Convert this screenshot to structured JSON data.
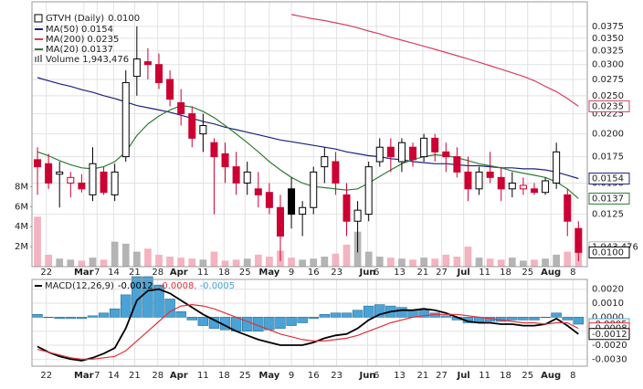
{
  "chart_data": [
    {
      "type": "candlestick",
      "title": "GTVH (Daily)",
      "value_label": "0.0100",
      "log_scale": true,
      "grid": true,
      "up_color": "#000000",
      "down_color": "#cc0033",
      "xlim": [
        -0.5,
        49.8
      ],
      "xticks": [
        {
          "value": 0.8,
          "label": "22"
        },
        {
          "value": 4.2,
          "label": "Mar"
        },
        {
          "value": 5.4,
          "label": "7"
        },
        {
          "value": 6.9,
          "label": "14"
        },
        {
          "value": 8.8,
          "label": "21"
        },
        {
          "value": 10.9,
          "label": "28"
        },
        {
          "value": 12.8,
          "label": "Apr"
        },
        {
          "value": 15.0,
          "label": "11"
        },
        {
          "value": 16.9,
          "label": "18"
        },
        {
          "value": 18.8,
          "label": "25"
        },
        {
          "value": 21.0,
          "label": "May"
        },
        {
          "value": 23.0,
          "label": "9"
        },
        {
          "value": 25.0,
          "label": "16"
        },
        {
          "value": 27.1,
          "label": "23"
        },
        {
          "value": 29.9,
          "label": "Jun"
        },
        {
          "value": 30.7,
          "label": "6"
        },
        {
          "value": 32.8,
          "label": "13"
        },
        {
          "value": 34.9,
          "label": "21"
        },
        {
          "value": 36.6,
          "label": "27"
        },
        {
          "value": 38.6,
          "label": "Jul"
        },
        {
          "value": 40.5,
          "label": "11"
        },
        {
          "value": 42.4,
          "label": "18"
        },
        {
          "value": 44.4,
          "label": "25"
        },
        {
          "value": 46.5,
          "label": "Aug"
        },
        {
          "value": 48.5,
          "label": "8"
        }
      ],
      "ylim": [
        0.0092,
        0.0433
      ],
      "yticks": [
        {
          "value": 0.0375,
          "label": "0.0375"
        },
        {
          "value": 0.035,
          "label": "0.0350"
        },
        {
          "value": 0.0325,
          "label": "0.0325"
        },
        {
          "value": 0.03,
          "label": "0.0300"
        },
        {
          "value": 0.0275,
          "label": "0.0275"
        },
        {
          "value": 0.025,
          "label": "0.0250"
        },
        {
          "value": 0.0225,
          "label": "0.0225"
        },
        {
          "value": 0.02,
          "label": "0.0200"
        },
        {
          "value": 0.0175,
          "label": "0.0175"
        },
        {
          "value": 0.015,
          "label": "0.0150"
        },
        {
          "value": 0.0125,
          "label": "0.0125"
        }
      ],
      "ohlc": [
        [
          0.0172,
          0.0185,
          0.014,
          0.0165
        ],
        [
          0.0168,
          0.0178,
          0.0145,
          0.015
        ],
        [
          0.0158,
          0.017,
          0.013,
          0.016
        ],
        [
          0.015,
          0.016,
          0.0138,
          0.0155
        ],
        [
          0.015,
          0.0158,
          0.0142,
          0.0145
        ],
        [
          0.014,
          0.0185,
          0.0135,
          0.0168
        ],
        [
          0.016,
          0.0165,
          0.014,
          0.0142
        ],
        [
          0.014,
          0.0168,
          0.0135,
          0.016
        ],
        [
          0.0175,
          0.029,
          0.017,
          0.027
        ],
        [
          0.028,
          0.0375,
          0.025,
          0.031
        ],
        [
          0.0305,
          0.033,
          0.0275,
          0.03
        ],
        [
          0.03,
          0.032,
          0.026,
          0.027
        ],
        [
          0.0275,
          0.029,
          0.0235,
          0.0245
        ],
        [
          0.024,
          0.026,
          0.021,
          0.0225
        ],
        [
          0.0225,
          0.0235,
          0.0185,
          0.0195
        ],
        [
          0.02,
          0.0225,
          0.018,
          0.021
        ],
        [
          0.019,
          0.0195,
          0.0125,
          0.0175
        ],
        [
          0.0178,
          0.019,
          0.015,
          0.0165
        ],
        [
          0.0165,
          0.018,
          0.014,
          0.015
        ],
        [
          0.015,
          0.017,
          0.014,
          0.016
        ],
        [
          0.0145,
          0.016,
          0.013,
          0.014
        ],
        [
          0.0142,
          0.015,
          0.0125,
          0.013
        ],
        [
          0.013,
          0.014,
          0.0095,
          0.011
        ],
        [
          0.0145,
          0.0155,
          0.0115,
          0.0125
        ],
        [
          0.0125,
          0.0135,
          0.011,
          0.013
        ],
        [
          0.013,
          0.0165,
          0.0125,
          0.016
        ],
        [
          0.0165,
          0.0185,
          0.015,
          0.0175
        ],
        [
          0.017,
          0.018,
          0.014,
          0.015
        ],
        [
          0.014,
          0.015,
          0.011,
          0.012
        ],
        [
          0.012,
          0.0135,
          0.01,
          0.0128
        ],
        [
          0.0125,
          0.017,
          0.012,
          0.0165
        ],
        [
          0.017,
          0.0195,
          0.0165,
          0.0185
        ],
        [
          0.0185,
          0.0195,
          0.016,
          0.0175
        ],
        [
          0.017,
          0.0195,
          0.016,
          0.019
        ],
        [
          0.0185,
          0.019,
          0.0165,
          0.0172
        ],
        [
          0.0175,
          0.02,
          0.017,
          0.0195
        ],
        [
          0.0195,
          0.02,
          0.017,
          0.018
        ],
        [
          0.018,
          0.019,
          0.016,
          0.0175
        ],
        [
          0.0175,
          0.0185,
          0.0155,
          0.016
        ],
        [
          0.016,
          0.0175,
          0.0135,
          0.0145
        ],
        [
          0.0145,
          0.0165,
          0.014,
          0.016
        ],
        [
          0.016,
          0.018,
          0.015,
          0.0155
        ],
        [
          0.0155,
          0.0165,
          0.0135,
          0.0145
        ],
        [
          0.0145,
          0.016,
          0.0138,
          0.015
        ],
        [
          0.0145,
          0.0155,
          0.014,
          0.0148
        ],
        [
          0.0145,
          0.015,
          0.014,
          0.0142
        ],
        [
          0.0142,
          0.0155,
          0.014,
          0.0152
        ],
        [
          0.015,
          0.019,
          0.0145,
          0.018
        ],
        [
          0.014,
          0.0145,
          0.011,
          0.012
        ],
        [
          0.0115,
          0.012,
          0.0095,
          0.01
        ]
      ],
      "series": [
        {
          "name": "MA(50)",
          "value_label": "0.0154",
          "color": "#1a237e",
          "values": [
            0.0278,
            0.0273,
            0.0268,
            0.0264,
            0.0259,
            0.0255,
            0.025,
            0.0246,
            0.0241,
            0.0236,
            0.0233,
            0.023,
            0.0227,
            0.0223,
            0.0219,
            0.0215,
            0.0212,
            0.0208,
            0.0205,
            0.0202,
            0.0199,
            0.0196,
            0.0193,
            0.0191,
            0.0189,
            0.0187,
            0.0185,
            0.0183,
            0.018,
            0.0178,
            0.0176,
            0.0175,
            0.0173,
            0.0172,
            0.017,
            0.0169,
            0.0168,
            0.0168,
            0.0167,
            0.0166,
            0.0166,
            0.0165,
            0.0164,
            0.0164,
            0.0163,
            0.0163,
            0.0162,
            0.016,
            0.0157,
            0.0154
          ]
        },
        {
          "name": "MA(200)",
          "value_label": "0.0235",
          "color": "#d6405e",
          "values": [
            null,
            null,
            null,
            null,
            null,
            null,
            null,
            null,
            null,
            null,
            null,
            null,
            null,
            null,
            null,
            null,
            null,
            null,
            null,
            null,
            null,
            null,
            null,
            0.0402,
            0.0397,
            0.0392,
            0.0388,
            0.0383,
            0.0378,
            0.0372,
            0.0365,
            0.0359,
            0.0352,
            0.0346,
            0.034,
            0.0334,
            0.0328,
            0.0322,
            0.0316,
            0.031,
            0.0304,
            0.0298,
            0.0292,
            0.0286,
            0.028,
            0.0273,
            0.0264,
            0.0256,
            0.0246,
            0.0235
          ]
        },
        {
          "name": "MA(20)",
          "value_label": "0.0137",
          "color": "#2e7d32",
          "values": [
            0.018,
            0.0176,
            0.0171,
            0.0167,
            0.0164,
            0.0163,
            0.0165,
            0.017,
            0.018,
            0.0198,
            0.0212,
            0.0222,
            0.023,
            0.0236,
            0.0234,
            0.0228,
            0.022,
            0.021,
            0.02,
            0.019,
            0.018,
            0.017,
            0.0162,
            0.0155,
            0.015,
            0.0147,
            0.0146,
            0.0145,
            0.0144,
            0.0145,
            0.015,
            0.0156,
            0.0162,
            0.0168,
            0.0172,
            0.0175,
            0.0177,
            0.0176,
            0.0174,
            0.0171,
            0.0168,
            0.0166,
            0.0164,
            0.0161,
            0.0159,
            0.0157,
            0.0155,
            0.0151,
            0.0145,
            0.0137
          ]
        }
      ],
      "volume": {
        "name": "Volume",
        "value_label": "1,943,476",
        "up_color": "#b4b4b4",
        "down_color": "#f4b3c0",
        "ylim": [
          0,
          26500000
        ],
        "yticks": [
          {
            "value": 2000000,
            "label": "2M"
          },
          {
            "value": 4000000,
            "label": "4M"
          },
          {
            "value": 6000000,
            "label": "6M"
          },
          {
            "value": 8000000,
            "label": "8M"
          }
        ],
        "values": [
          5000000,
          1200000,
          800000,
          700000,
          600000,
          900000,
          700000,
          2500000,
          2300000,
          1500000,
          1800000,
          1200000,
          1000000,
          900000,
          800000,
          700000,
          1500000,
          600000,
          700000,
          800000,
          1200000,
          1000000,
          1600000,
          900000,
          700000,
          800000,
          1000000,
          1300000,
          2200000,
          3500000,
          1500000,
          1000000,
          900000,
          800000,
          700000,
          900000,
          800000,
          1200000,
          1000000,
          2000000,
          900000,
          800000,
          700000,
          900000,
          600000,
          700000,
          800000,
          1200000,
          1500000,
          1943476
        ]
      }
    },
    {
      "type": "line",
      "title": "MACD(12,26,9)",
      "separator": ",",
      "grid": true,
      "xlim": [
        -0.5,
        49.8
      ],
      "xticks": [
        {
          "value": 0.8,
          "label": "22"
        },
        {
          "value": 4.2,
          "label": "Mar"
        },
        {
          "value": 5.4,
          "label": "7"
        },
        {
          "value": 6.9,
          "label": "14"
        },
        {
          "value": 8.8,
          "label": "21"
        },
        {
          "value": 10.9,
          "label": "28"
        },
        {
          "value": 12.8,
          "label": "Apr"
        },
        {
          "value": 15.0,
          "label": "11"
        },
        {
          "value": 16.9,
          "label": "18"
        },
        {
          "value": 18.8,
          "label": "25"
        },
        {
          "value": 21.0,
          "label": "May"
        },
        {
          "value": 23.0,
          "label": "9"
        },
        {
          "value": 25.0,
          "label": "16"
        },
        {
          "value": 27.1,
          "label": "23"
        },
        {
          "value": 29.9,
          "label": "Jun"
        },
        {
          "value": 30.7,
          "label": "6"
        },
        {
          "value": 32.8,
          "label": "13"
        },
        {
          "value": 34.9,
          "label": "21"
        },
        {
          "value": 36.6,
          "label": "27"
        },
        {
          "value": 38.6,
          "label": "Jul"
        },
        {
          "value": 40.5,
          "label": "11"
        },
        {
          "value": 42.4,
          "label": "18"
        },
        {
          "value": 44.4,
          "label": "25"
        },
        {
          "value": 46.5,
          "label": "Aug"
        },
        {
          "value": 48.5,
          "label": "8"
        }
      ],
      "ylim": [
        -0.0035,
        0.0027
      ],
      "yticks": [
        {
          "value": 0.002,
          "label": "0.0020"
        },
        {
          "value": 0.001,
          "label": "0.0010"
        },
        {
          "value": 0,
          "label": "0.0000"
        },
        {
          "value": -0.001,
          "label": "-0.0010"
        },
        {
          "value": -0.002,
          "label": "-0.0020"
        },
        {
          "value": -0.003,
          "label": "-0.0030"
        }
      ],
      "series": [
        {
          "type": "line",
          "value_label": "-0.0012",
          "color": "#000000",
          "values": [
            -0.0021,
            -0.0025,
            -0.0028,
            -0.003,
            -0.0031,
            -0.0029,
            -0.0026,
            -0.0022,
            -0.0008,
            0.0012,
            0.0019,
            0.002,
            0.0017,
            0.0012,
            0.0007,
            0.0002,
            -0.0002,
            -0.0006,
            -0.001,
            -0.0013,
            -0.0016,
            -0.0018,
            -0.002,
            -0.002,
            -0.002,
            -0.0018,
            -0.0015,
            -0.0013,
            -0.0012,
            -0.0008,
            -0.0002,
            0.0002,
            0.0004,
            0.0005,
            0.0005,
            0.0006,
            0.0005,
            0.0003,
            0.0,
            -0.0003,
            -0.0004,
            -0.0004,
            -0.0005,
            -0.0005,
            -0.0006,
            -0.0006,
            -0.0005,
            -0.0001,
            -0.0006,
            -0.0012
          ]
        },
        {
          "type": "line",
          "value_label": "-0.0008",
          "color": "#e0303a",
          "values": [
            -0.0023,
            -0.0025,
            -0.0027,
            -0.0029,
            -0.003,
            -0.003,
            -0.0029,
            -0.0028,
            -0.0024,
            -0.0017,
            -0.001,
            -0.0003,
            0.0004,
            0.0008,
            0.0009,
            0.0008,
            0.0006,
            0.0003,
            0.0,
            -0.0003,
            -0.0006,
            -0.0009,
            -0.0012,
            -0.0014,
            -0.0016,
            -0.0017,
            -0.0017,
            -0.0016,
            -0.0015,
            -0.0013,
            -0.001,
            -0.0007,
            -0.0004,
            -0.0002,
            0.0,
            0.0001,
            0.0002,
            0.0002,
            0.0002,
            0.0001,
            0.0,
            -0.0001,
            -0.0002,
            -0.0003,
            -0.0004,
            -0.0004,
            -0.0005,
            -0.0004,
            -0.0004,
            -0.0008
          ]
        },
        {
          "type": "bar",
          "value_label": "-0.0005",
          "color": "#4aa3d6",
          "values": [
            0.0002,
            0.0,
            -0.0001,
            -0.0001,
            -0.0001,
            0.0001,
            0.0003,
            0.0006,
            0.0016,
            0.0029,
            0.0029,
            0.0023,
            0.0013,
            0.0004,
            -0.0002,
            -0.0006,
            -0.0008,
            -0.0009,
            -0.001,
            -0.001,
            -0.001,
            -0.0009,
            -0.0008,
            -0.0006,
            -0.0004,
            -0.0001,
            0.0002,
            0.0003,
            0.0003,
            0.0005,
            0.0008,
            0.0009,
            0.0008,
            0.0007,
            0.0005,
            0.0005,
            0.0003,
            0.0001,
            -0.0002,
            -0.0004,
            -0.0004,
            -0.0003,
            -0.0003,
            -0.0002,
            -0.0002,
            -0.0002,
            0.0,
            0.0003,
            -0.0002,
            -0.0005
          ]
        }
      ]
    }
  ]
}
